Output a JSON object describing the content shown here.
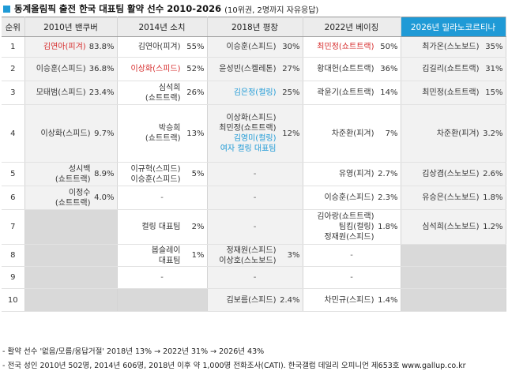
{
  "title": "동계올림픽 출전 한국 대표팀 활약 선수 2010-2026",
  "subtitle": "(10위권, 2명까지 자유응답)",
  "headers": [
    "순위",
    "2010년 밴쿠버",
    "2014년 소치",
    "2018년 평창",
    "2022년 베이징",
    "2026년 밀라노코르티나"
  ],
  "rows": [
    {
      "rank": "1",
      "c": [
        {
          "n": [
            {
              "t": "김연아(피겨)",
              "s": "red"
            }
          ],
          "p": "83.8%"
        },
        {
          "n": [
            {
              "t": "김연아(피겨)"
            }
          ],
          "p": "55%"
        },
        {
          "n": [
            {
              "t": "이승훈(스피드)"
            }
          ],
          "p": "30%"
        },
        {
          "n": [
            {
              "t": "최민정(쇼트트랙)",
              "s": "red"
            }
          ],
          "p": "50%"
        },
        {
          "n": [
            {
              "t": "최가온(스노보드)"
            }
          ],
          "p": "35%"
        }
      ]
    },
    {
      "rank": "2",
      "c": [
        {
          "n": [
            {
              "t": "이승훈(스피드)"
            }
          ],
          "p": "36.8%"
        },
        {
          "n": [
            {
              "t": "이상화(스피드)",
              "s": "red"
            }
          ],
          "p": "52%"
        },
        {
          "n": [
            {
              "t": "윤성빈(스켈레톤)"
            }
          ],
          "p": "27%"
        },
        {
          "n": [
            {
              "t": "황대헌(쇼트트랙)"
            }
          ],
          "p": "36%"
        },
        {
          "n": [
            {
              "t": "김길리(쇼트트랙)"
            }
          ],
          "p": "31%"
        }
      ]
    },
    {
      "rank": "3",
      "c": [
        {
          "n": [
            {
              "t": "모태범(스피드)"
            }
          ],
          "p": "23.4%"
        },
        {
          "n": [
            {
              "t": "심석희"
            },
            {
              "t": "(쇼트트랙)"
            }
          ],
          "p": "26%"
        },
        {
          "n": [
            {
              "t": "김은정(컬링)",
              "s": "blue"
            }
          ],
          "p": "25%"
        },
        {
          "n": [
            {
              "t": "곽윤기(쇼트트랙)"
            }
          ],
          "p": "14%"
        },
        {
          "n": [
            {
              "t": "최민정(쇼트트랙)"
            }
          ],
          "p": "15%"
        }
      ]
    },
    {
      "rank": "4",
      "c": [
        {
          "n": [
            {
              "t": "이상화(스피드)"
            }
          ],
          "p": "9.7%"
        },
        {
          "n": [
            {
              "t": "박승희"
            },
            {
              "t": "(쇼트트랙)"
            }
          ],
          "p": "13%"
        },
        {
          "n": [
            {
              "t": "이상화(스피드)"
            },
            {
              "t": "최민정(쇼트트랙)"
            },
            {
              "t": "김영미(컬링)",
              "s": "blue"
            },
            {
              "t": "여자 컬링 대표팀",
              "s": "blue"
            }
          ],
          "p": "12%"
        },
        {
          "n": [
            {
              "t": "차준환(피겨)"
            }
          ],
          "p": "7%"
        },
        {
          "n": [
            {
              "t": "차준환(피겨)"
            }
          ],
          "p": "3.2%"
        }
      ]
    },
    {
      "rank": "5",
      "c": [
        {
          "n": [
            {
              "t": "성시백"
            },
            {
              "t": "(쇼트트랙)"
            }
          ],
          "p": "8.9%"
        },
        {
          "n": [
            {
              "t": "이규혁(스피드)"
            },
            {
              "t": "이승훈(스피드)"
            }
          ],
          "p": "5%"
        },
        {
          "dash": "-"
        },
        {
          "n": [
            {
              "t": "유영(피겨)"
            }
          ],
          "p": "2.7%"
        },
        {
          "n": [
            {
              "t": "김상겸(스노보드)"
            }
          ],
          "p": "2.6%"
        }
      ]
    },
    {
      "rank": "6",
      "c": [
        {
          "n": [
            {
              "t": "이정수"
            },
            {
              "t": "(쇼트트랙)"
            }
          ],
          "p": "4.0%"
        },
        {
          "dash": "-"
        },
        {
          "dash": "-"
        },
        {
          "n": [
            {
              "t": "이승훈(스피드)"
            }
          ],
          "p": "2.3%"
        },
        {
          "n": [
            {
              "t": "유승은(스노보드)"
            }
          ],
          "p": "1.8%"
        }
      ]
    },
    {
      "rank": "7",
      "c": [
        {
          "empty": true
        },
        {
          "n": [
            {
              "t": "컬링 대표팀"
            }
          ],
          "p": "2%"
        },
        {
          "dash": "-"
        },
        {
          "n": [
            {
              "t": "김아랑(쇼트트랙)"
            },
            {
              "t": "팀킴(컬링)"
            },
            {
              "t": "정재원(스피드)"
            }
          ],
          "p": "1.8%"
        },
        {
          "n": [
            {
              "t": "심석희(스노보드)"
            }
          ],
          "p": "1.2%"
        }
      ]
    },
    {
      "rank": "8",
      "c": [
        {
          "empty": true
        },
        {
          "n": [
            {
              "t": "봅슬레이"
            },
            {
              "t": "대표팀"
            }
          ],
          "p": "1%"
        },
        {
          "n": [
            {
              "t": "정재원(스피드)"
            },
            {
              "t": "이상호(스노보드)"
            }
          ],
          "p": "3%"
        },
        {
          "dash": "-"
        },
        {
          "empty": true
        }
      ]
    },
    {
      "rank": "9",
      "c": [
        {
          "empty": true
        },
        {
          "dash": "-"
        },
        {
          "dash": "-"
        },
        {
          "dash": "-"
        },
        {
          "empty": true
        }
      ]
    },
    {
      "rank": "10",
      "c": [
        {
          "empty": true
        },
        {
          "empty": true
        },
        {
          "n": [
            {
              "t": "김보름(스피드)"
            }
          ],
          "p": "2.4%"
        },
        {
          "n": [
            {
              "t": "차민규(스피드)"
            }
          ],
          "p": "1.4%"
        },
        {
          "empty": true
        }
      ]
    }
  ],
  "notes": [
    "- 활약 선수 '없음/모름/응답거절' 2018년 13% → 2022년 31% → 2026년 43%",
    "- 전국 성인 2010년 502명, 2014년 606명, 2018년 이후 약 1,000명 전화조사(CATI). 한국갤럽 데일리 오피니언 제653호 www.gallup.co.kr"
  ],
  "colors": {
    "accent": "#1f9ad6",
    "highlight_red": "#d62c2c",
    "shade": "#d9d9d9"
  }
}
